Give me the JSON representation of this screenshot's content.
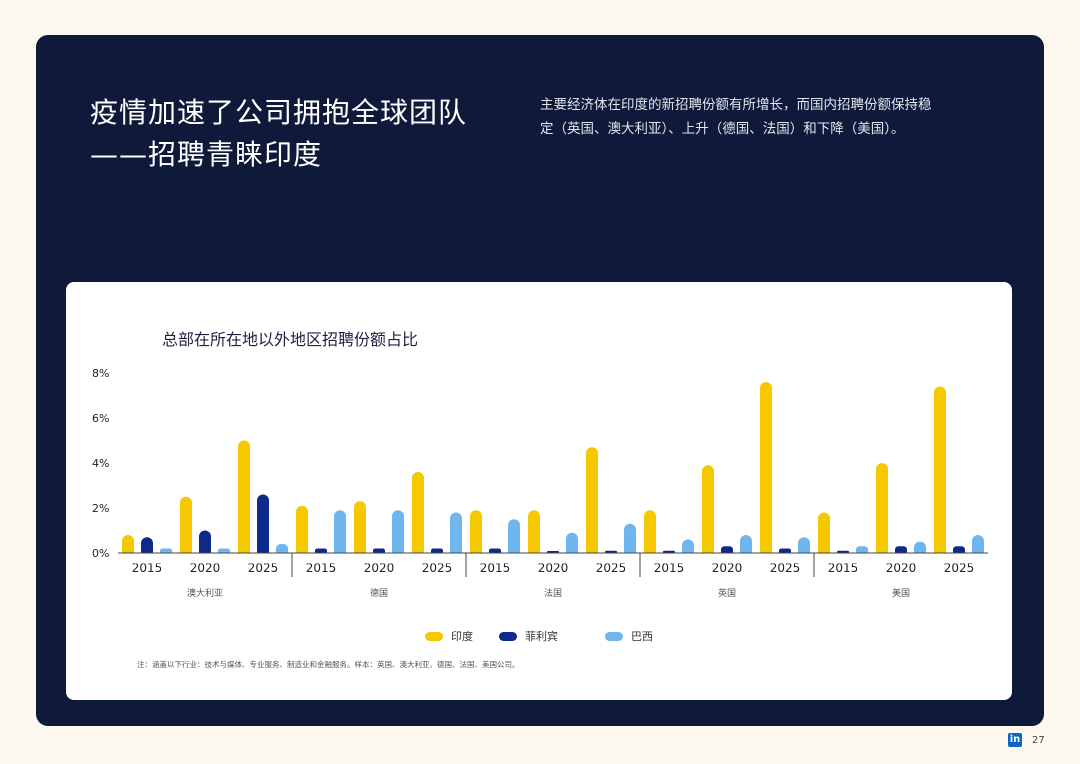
{
  "header": {
    "title_lines": [
      "疫情加速了公司拥抱全球团队",
      "——招聘青睐印度"
    ],
    "description": "主要经济体在印度的新招聘份额有所增长，而国内招聘份额保持稳定（英国、澳大利亚）、上升（德国、法国）和下降（美国）。"
  },
  "chart_data": {
    "type": "bar",
    "title": "总部在所在地以外地区招聘份额占比",
    "ylim": [
      0,
      8
    ],
    "yticks": [
      "8%",
      "6%",
      "4%",
      "2%",
      "0%"
    ],
    "groups": [
      {
        "label": "澳大利亚",
        "years": [
          "2015",
          "2020",
          "2025"
        ],
        "values": {
          "印度": [
            0.8,
            2.5,
            5.0
          ],
          "菲利宾": [
            0.7,
            1.0,
            2.6
          ],
          "巴西": [
            0.2,
            0.2,
            0.4
          ]
        }
      },
      {
        "label": "德国",
        "years": [
          "2015",
          "2020",
          "2025"
        ],
        "values": {
          "印度": [
            2.1,
            2.3,
            3.6
          ],
          "菲利宾": [
            0.2,
            0.2,
            0.2
          ],
          "巴西": [
            1.9,
            1.9,
            1.8
          ]
        }
      },
      {
        "label": "法国",
        "years": [
          "2015",
          "2020",
          "2025"
        ],
        "values": {
          "印度": [
            1.9,
            1.9,
            4.7
          ],
          "菲利宾": [
            0.2,
            0.05,
            0.1
          ],
          "巴西": [
            1.5,
            0.9,
            1.3
          ]
        }
      },
      {
        "label": "英国",
        "years": [
          "2015",
          "2020",
          "2025"
        ],
        "values": {
          "印度": [
            1.9,
            3.9,
            7.6
          ],
          "菲利宾": [
            0.1,
            0.3,
            0.2
          ],
          "巴西": [
            0.6,
            0.8,
            0.7
          ]
        }
      },
      {
        "label": "美国",
        "years": [
          "2015",
          "2020",
          "2025"
        ],
        "values": {
          "印度": [
            1.8,
            4.0,
            7.4
          ],
          "菲利宾": [
            0.1,
            0.3,
            0.3
          ],
          "巴西": [
            0.3,
            0.5,
            0.8
          ]
        }
      }
    ],
    "series": [
      {
        "name": "印度",
        "color": "#f5c800"
      },
      {
        "name": "菲利宾",
        "color": "#0d2a8a"
      },
      {
        "name": "巴西",
        "color": "#6fb6ef"
      }
    ],
    "legend_position": "bottom",
    "grid": false
  },
  "note": "注：涵盖以下行业：技术与媒体、专业服务、制造业和金融服务。样本：英国、澳大利亚、德国、法国、美国公司。",
  "footer": {
    "logo_text": "in",
    "page": "27"
  }
}
